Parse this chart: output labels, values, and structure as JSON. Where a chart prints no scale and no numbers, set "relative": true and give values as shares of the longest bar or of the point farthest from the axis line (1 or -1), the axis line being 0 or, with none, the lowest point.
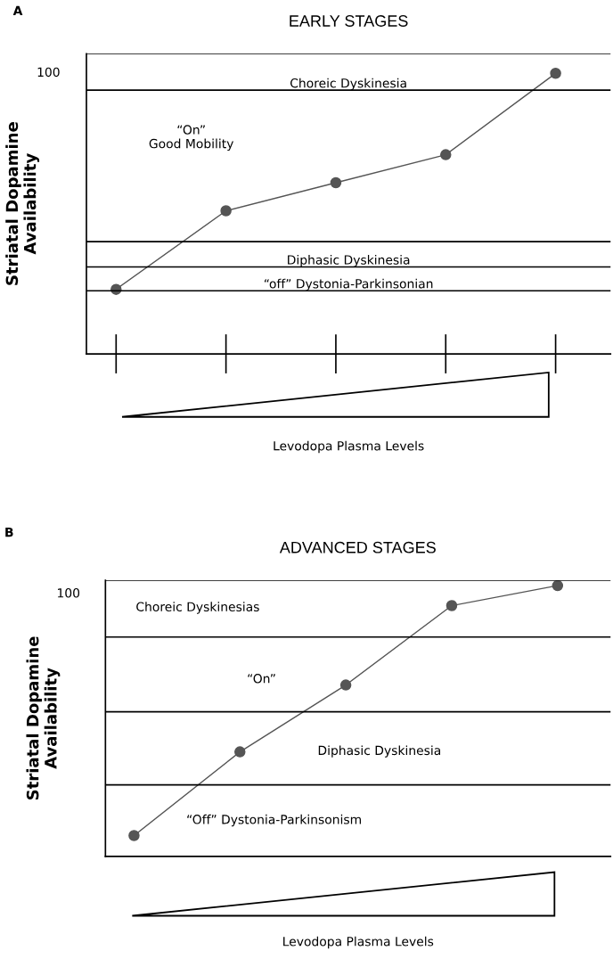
{
  "chart_data": [
    {
      "type": "line",
      "title": "EARLY STAGES",
      "xlabel": "Levodopa Plasma Levels",
      "ylabel": "Striatal Dopamine\nAvailability",
      "categories": [
        null,
        null,
        null,
        null,
        null
      ],
      "relative": true,
      "marker": "circle",
      "grid": false,
      "legend": false,
      "series": [
        {
          "color": "#555555",
          "values": [
            0.23,
            0.51,
            0.61,
            0.71,
            1.0
          ]
        }
      ],
      "ref_lines": [
        {
          "axis": "y",
          "value": 1.07
        },
        {
          "axis": "y",
          "value": 0.94,
          "label": "Choreic Dyskinesia"
        },
        {
          "axis": "y",
          "value": 0.4
        },
        {
          "axis": "y",
          "value": 0.31,
          "label": "Diphasic Dyskinesia"
        },
        {
          "axis": "y",
          "value": 0.225,
          "label": "“off” Dystonia-Parkinsonian"
        }
      ],
      "annotations": [
        "A",
        "“On”\nGood Mobility",
        "100"
      ]
    },
    {
      "type": "line",
      "title": "ADVANCED STAGES",
      "xlabel": "Levodopa Plasma Levels",
      "ylabel": "Striatal Dopamine\nAvailability",
      "categories": [
        null,
        null,
        null,
        null,
        null
      ],
      "relative": true,
      "marker": "circle",
      "grid": false,
      "legend": false,
      "series": [
        {
          "color": "#555555",
          "values": [
            0.077,
            0.386,
            0.633,
            0.926,
            1.0
          ]
        }
      ],
      "ref_lines": [
        {
          "axis": "y",
          "value": 1.02
        },
        {
          "axis": "y",
          "value": 0.81
        },
        {
          "axis": "y",
          "value": 0.534
        },
        {
          "axis": "y",
          "value": 0.264
        }
      ],
      "annotations": [
        "B",
        "100",
        "Choreic Dyskinesias",
        "“On”",
        "Diphasic Dyskinesia",
        "“Off” Dystonia-Parkinsonism"
      ]
    }
  ]
}
